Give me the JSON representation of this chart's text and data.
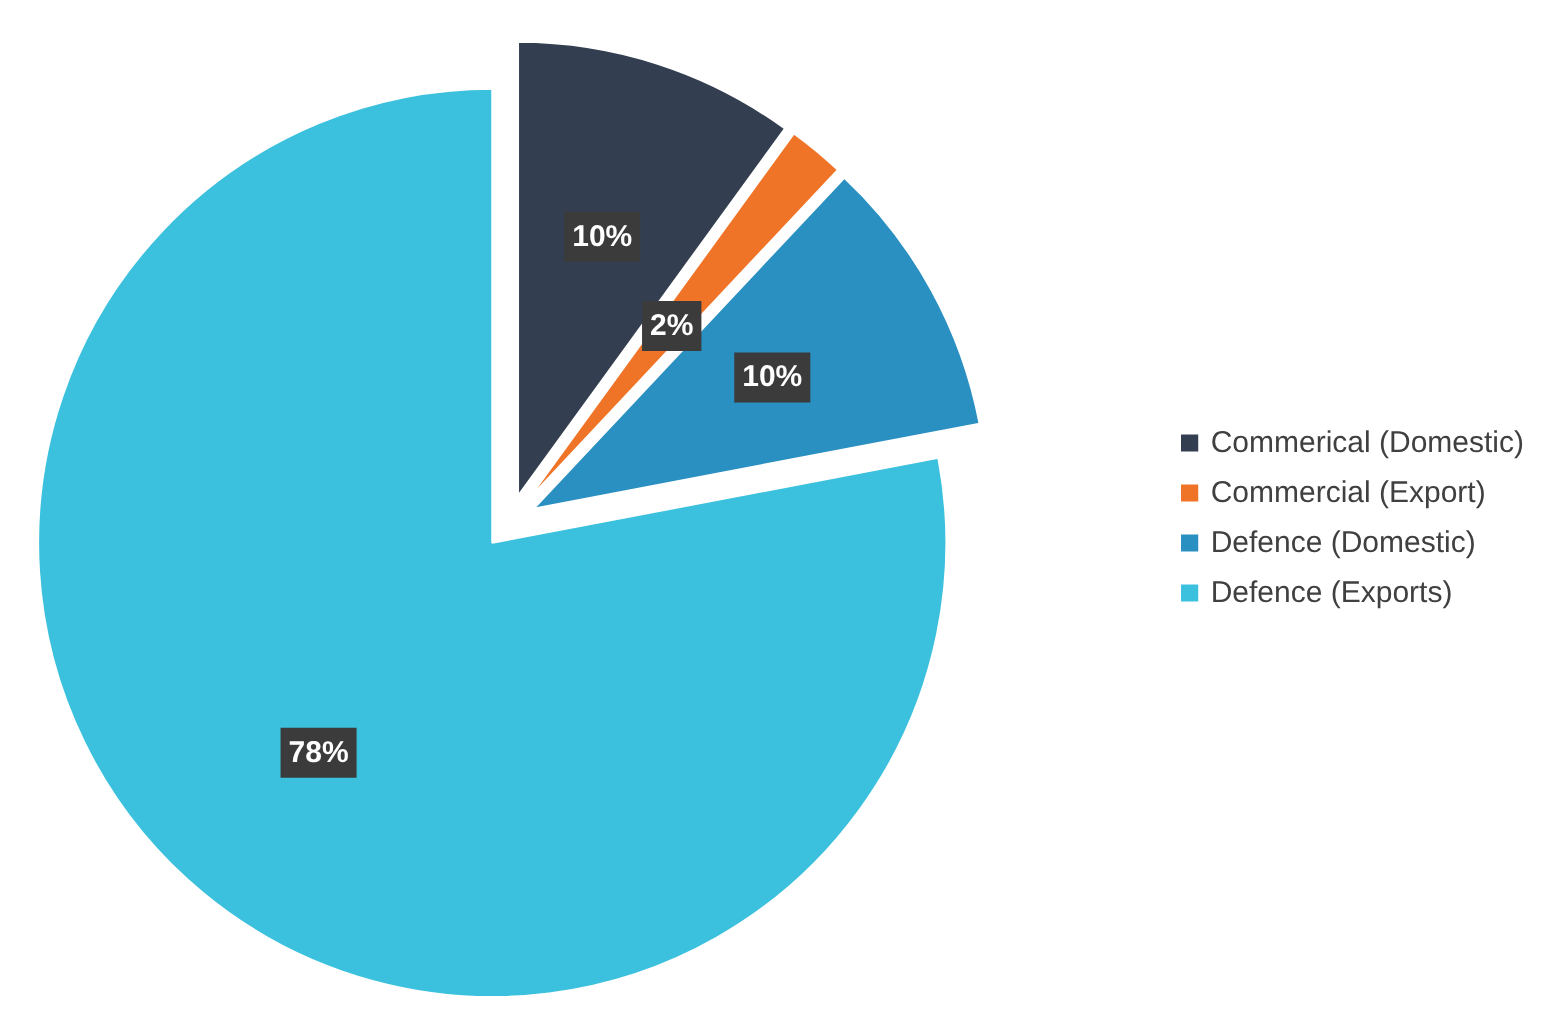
{
  "chart_data": {
    "type": "pie",
    "categories": [
      "Commerical (Domestic)",
      "Commercial (Export)",
      "Defence (Domestic)",
      "Defence (Exports)"
    ],
    "values": [
      10,
      2,
      10,
      78
    ],
    "colors": [
      "#333f50",
      "#f07427",
      "#2a8fc1",
      "#3bc1de"
    ],
    "value_labels": [
      "10%",
      "2%",
      "10%",
      "78%"
    ],
    "legend": "right"
  }
}
